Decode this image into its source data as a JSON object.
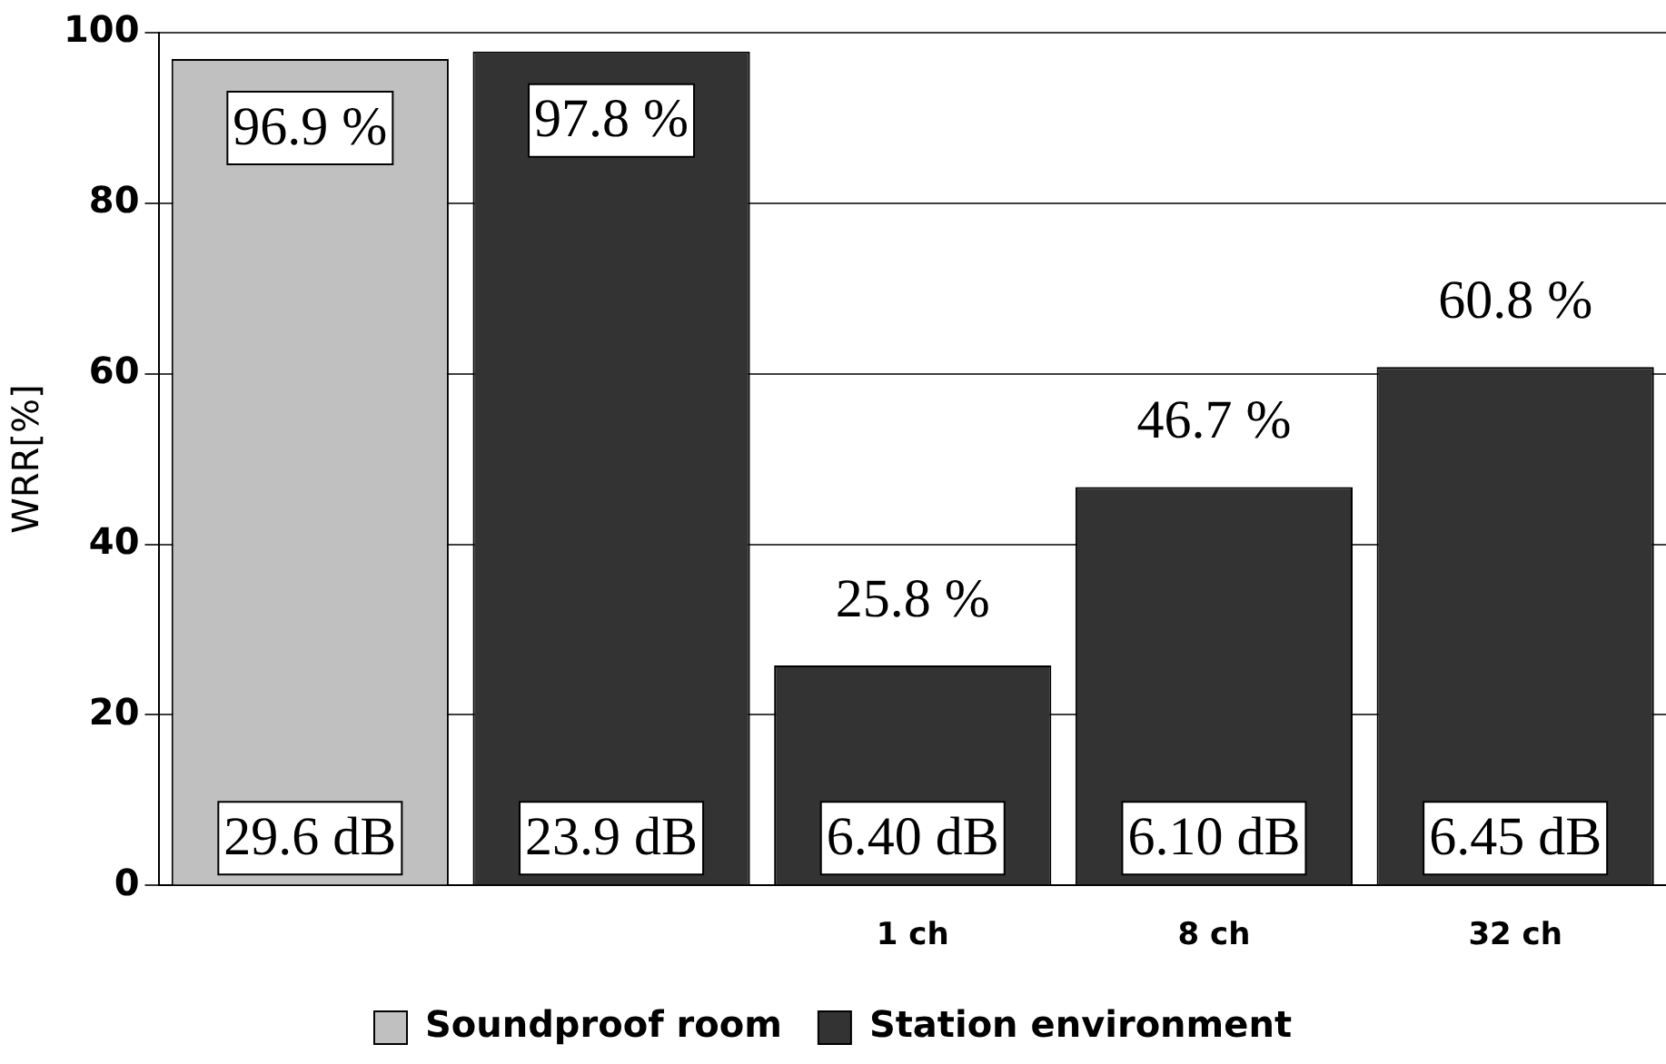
{
  "chart_data": {
    "type": "bar",
    "ylabel": "WRR[%]",
    "categories": [
      null,
      null,
      "1 ch",
      "8 ch",
      "32 ch"
    ],
    "series": [
      {
        "name": "Soundproof room",
        "color": "#c0c0c0",
        "values": [
          96.9,
          null,
          null,
          null,
          null
        ],
        "value_labels": [
          "96.9 %",
          null,
          null,
          null,
          null
        ]
      },
      {
        "name": "Station environment",
        "color": "#333333",
        "values": [
          null,
          97.8,
          25.8,
          46.7,
          60.8
        ],
        "value_labels": [
          null,
          "97.8 %",
          "25.8 %",
          "46.7 %",
          "60.8 %"
        ]
      }
    ],
    "ylim": [
      0,
      100
    ],
    "yticks": [
      0,
      20,
      40,
      60,
      80,
      100
    ],
    "grid": "y",
    "legend": "bottom",
    "annotations": [
      "29.6 dB",
      "23.9 dB",
      "6.40 dB",
      "6.10 dB",
      "6.45 dB"
    ]
  }
}
